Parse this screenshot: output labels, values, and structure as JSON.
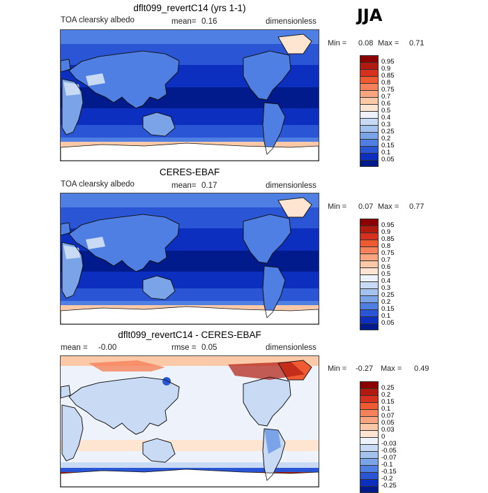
{
  "season": "JJA",
  "panels": [
    {
      "title": "dflt099_revertC14 (yrs 1-1)",
      "left_label": "TOA clearsky albedo",
      "mean_label": "mean=",
      "mean_value": "0.16",
      "units": "dimensionless",
      "min_label": "Min =",
      "min_value": "0.08",
      "max_label": "Max =",
      "max_value": "0.71",
      "colorbar": {
        "levels": [
          "0.95",
          "0.9",
          "0.85",
          "0.8",
          "0.75",
          "0.7",
          "0.6",
          "0.5",
          "0.4",
          "0.3",
          "0.25",
          "0.2",
          "0.15",
          "0.1",
          "0.05"
        ],
        "colors": [
          "#8b0000",
          "#b11a0e",
          "#d7301f",
          "#ef5a32",
          "#f5825a",
          "#f9a57f",
          "#fcc9a8",
          "#fde5d2",
          "#eef3fb",
          "#c8daf4",
          "#a3c2ee",
          "#7aa3e8",
          "#4f7fe3",
          "#2a56d6",
          "#0d2fc0",
          "#011a8c"
        ]
      }
    },
    {
      "title": "CERES-EBAF",
      "left_label": "TOA clearsky albedo",
      "mean_label": "mean=",
      "mean_value": "0.17",
      "units": "dimensionless",
      "min_label": "Min =",
      "min_value": "0.07",
      "max_label": "Max =",
      "max_value": "0.77",
      "colorbar": {
        "levels": [
          "0.95",
          "0.9",
          "0.85",
          "0.8",
          "0.75",
          "0.7",
          "0.6",
          "0.5",
          "0.4",
          "0.3",
          "0.25",
          "0.2",
          "0.15",
          "0.1",
          "0.05"
        ],
        "colors": [
          "#8b0000",
          "#b11a0e",
          "#d7301f",
          "#ef5a32",
          "#f5825a",
          "#f9a57f",
          "#fcc9a8",
          "#fde5d2",
          "#eef3fb",
          "#c8daf4",
          "#a3c2ee",
          "#7aa3e8",
          "#4f7fe3",
          "#2a56d6",
          "#0d2fc0",
          "#011a8c"
        ]
      }
    },
    {
      "title": "dflt099_revertC14 - CERES-EBAF",
      "left_label": "mean =",
      "mean_label": "",
      "mean_value": "-0.00",
      "rmse_label": "rmse =",
      "rmse_value": "0.05",
      "units": "dimensionless",
      "min_label": "Min =",
      "min_value": "-0.27",
      "max_label": "Max =",
      "max_value": "0.49",
      "colorbar": {
        "levels": [
          "0.25",
          "0.2",
          "0.15",
          "0.1",
          "0.07",
          "0.05",
          "0.03",
          "0",
          "-0.03",
          "-0.05",
          "-0.07",
          "-0.1",
          "-0.15",
          "-0.2",
          "-0.25"
        ],
        "colors": [
          "#8b0000",
          "#b11a0e",
          "#d7301f",
          "#ef5a32",
          "#f5825a",
          "#f9a57f",
          "#fcc9a8",
          "#fde5d2",
          "#eef3fb",
          "#c8daf4",
          "#a3c2ee",
          "#7aa3e8",
          "#4f7fe3",
          "#2a56d6",
          "#0d2fc0",
          "#011a8c"
        ]
      }
    }
  ]
}
